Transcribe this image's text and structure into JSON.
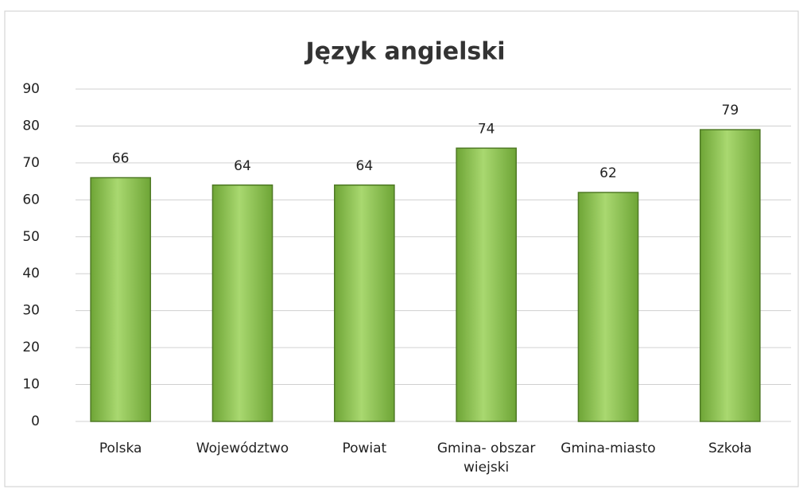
{
  "chart_data": {
    "type": "bar",
    "title": "Język angielski",
    "categories": [
      "Polska",
      "Województwo",
      "Powiat",
      "Gmina- obszar wiejski",
      "Gmina-miasto",
      "Szkoła"
    ],
    "values": [
      66,
      64,
      64,
      74,
      62,
      79
    ],
    "color": "#8cc152",
    "ylim": [
      0,
      90
    ],
    "yticks": [
      0,
      10,
      20,
      30,
      40,
      50,
      60,
      70,
      80,
      90
    ],
    "grid": true
  }
}
